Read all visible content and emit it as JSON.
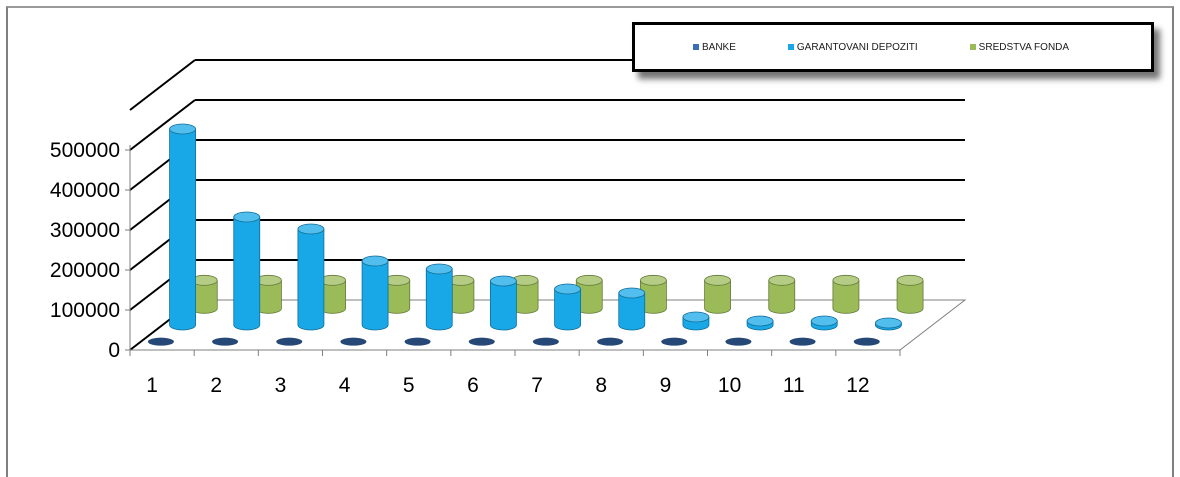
{
  "chart_data": {
    "type": "bar",
    "subtype": "3d-column",
    "title": "",
    "xlabel": "",
    "ylabel": "",
    "categories": [
      "1",
      "2",
      "3",
      "4",
      "5",
      "6",
      "7",
      "8",
      "9",
      "10",
      "11",
      "12"
    ],
    "ylim": [
      0,
      500000
    ],
    "yticks": [
      "0",
      "100000",
      "200000",
      "300000",
      "400000",
      "500000"
    ],
    "grid": true,
    "legend_position": "top-right",
    "series": [
      {
        "name": "BANKE",
        "color": "#3a6fb5",
        "values": [
          0,
          0,
          0,
          0,
          0,
          0,
          0,
          0,
          0,
          0,
          0,
          0
        ]
      },
      {
        "name": "GARANTOVANI DEPOZITI",
        "color": "#18a8e8",
        "values": [
          490000,
          270000,
          240000,
          160000,
          140000,
          110000,
          90000,
          80000,
          20000,
          10000,
          10000,
          5000
        ]
      },
      {
        "name": "SREDSTVA FONDA",
        "color": "#9bbb59",
        "values": [
          70000,
          70000,
          70000,
          70000,
          70000,
          70000,
          70000,
          70000,
          70000,
          70000,
          70000,
          70000
        ]
      }
    ]
  }
}
